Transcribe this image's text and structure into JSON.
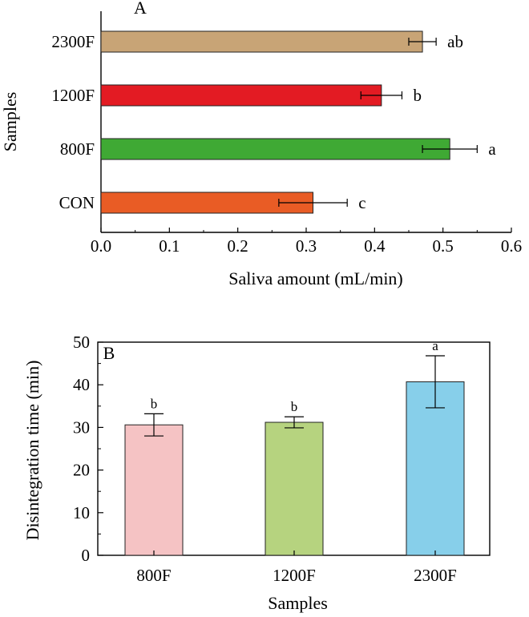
{
  "chart_data": [
    {
      "type": "bar",
      "orientation": "horizontal",
      "panel_label": "A",
      "categories": [
        "CON",
        "800F",
        "1200F",
        "2300F"
      ],
      "values": [
        0.31,
        0.51,
        0.41,
        0.47
      ],
      "errors": [
        0.05,
        0.04,
        0.03,
        0.02
      ],
      "significance": [
        "c",
        "a",
        "b",
        "ab"
      ],
      "colors": [
        "#e95c25",
        "#3fa934",
        "#e31b23",
        "#c8a476"
      ],
      "xlabel": "Saliva amount (mL/min)",
      "ylabel": "Samples",
      "xlim": [
        0,
        0.6
      ],
      "xticks": [
        "0.0",
        "0.1",
        "0.2",
        "0.3",
        "0.4",
        "0.5",
        "0.6"
      ],
      "grid": false
    },
    {
      "type": "bar",
      "orientation": "vertical",
      "panel_label": "B",
      "categories": [
        "800F",
        "1200F",
        "2300F"
      ],
      "values": [
        30.6,
        31.2,
        40.7
      ],
      "errors": [
        2.6,
        1.3,
        6.1
      ],
      "significance": [
        "b",
        "b",
        "a"
      ],
      "colors": [
        "#f5c3c4",
        "#b6d37f",
        "#87cfea"
      ],
      "xlabel": "Samples",
      "ylabel": "Disintegration time (min)",
      "ylim": [
        0,
        50
      ],
      "yticks": [
        "0",
        "10",
        "20",
        "30",
        "40",
        "50"
      ],
      "grid": false
    }
  ]
}
